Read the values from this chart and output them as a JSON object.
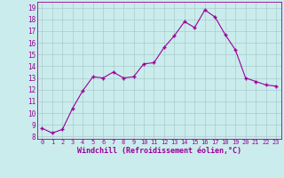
{
  "x": [
    0,
    1,
    2,
    3,
    4,
    5,
    6,
    7,
    8,
    9,
    10,
    11,
    12,
    13,
    14,
    15,
    16,
    17,
    18,
    19,
    20,
    21,
    22,
    23
  ],
  "y": [
    8.7,
    8.3,
    8.6,
    10.4,
    11.9,
    13.1,
    13.0,
    13.5,
    13.0,
    13.1,
    14.2,
    14.3,
    15.6,
    16.6,
    17.8,
    17.3,
    18.8,
    18.2,
    16.7,
    15.4,
    13.0,
    12.7,
    12.4,
    12.3
  ],
  "line_color": "#990099",
  "marker": "+",
  "marker_size": 3,
  "bg_color": "#cbecec",
  "grid_color": "#aacccc",
  "xlabel": "Windchill (Refroidissement éolien,°C)",
  "xlabel_color": "#990099",
  "ylim": [
    7.8,
    19.5
  ],
  "xlim": [
    -0.5,
    23.5
  ],
  "yticks": [
    8,
    9,
    10,
    11,
    12,
    13,
    14,
    15,
    16,
    17,
    18,
    19
  ],
  "xticks": [
    0,
    1,
    2,
    3,
    4,
    5,
    6,
    7,
    8,
    9,
    10,
    11,
    12,
    13,
    14,
    15,
    16,
    17,
    18,
    19,
    20,
    21,
    22,
    23
  ],
  "tick_color": "#990099",
  "spine_color": "#990099",
  "ytick_fontsize": 5.5,
  "xtick_fontsize": 5.0,
  "xlabel_fontsize": 6.0
}
